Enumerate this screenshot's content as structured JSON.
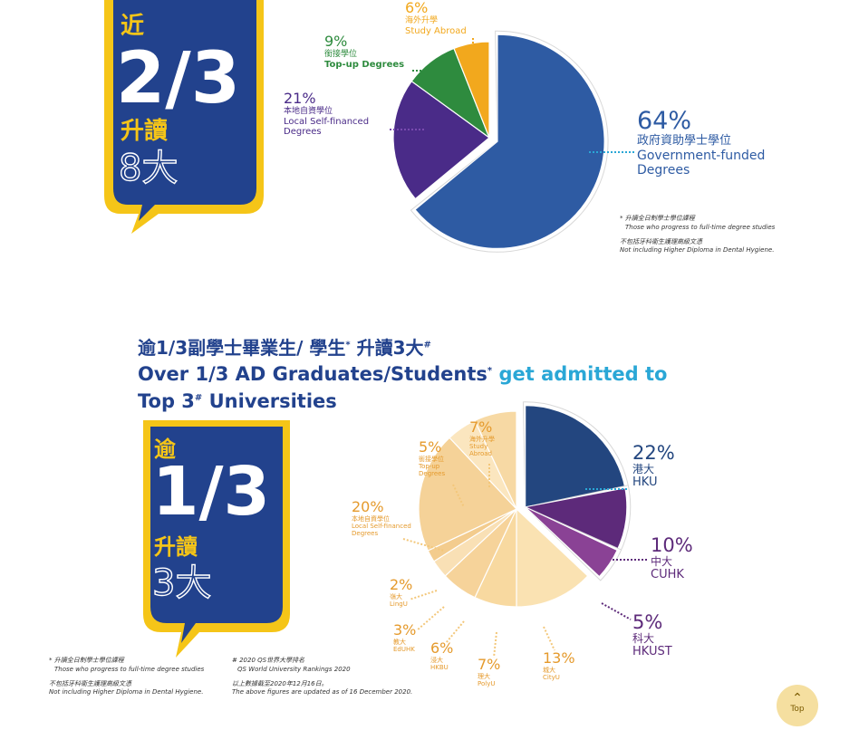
{
  "chart1": {
    "badge": {
      "line1": "近",
      "big": "2/3",
      "line3": "升讀",
      "line4": "8大"
    },
    "notes": [
      "* 升讀全日制學士學位課程",
      "Those who progress to full-time degree studies",
      "不包括牙科衞生護理高級文憑",
      "Not including Higher Diploma in Dental Hygiene."
    ]
  },
  "chart2": {
    "heading": {
      "zh_a": "逾1/3副學士畢業生/ 學生",
      "zh_star": "*",
      "zh_b": " 升讀3大",
      "zh_hash": "#",
      "en1_a": "Over 1/3 AD Graduates/Students",
      "en1_star": "*",
      "en1_b": " get admitted to",
      "en2_a": "Top 3",
      "en2_hash": "#",
      "en2_b": " Universities"
    },
    "badge": {
      "line1": "逾",
      "big": "1/3",
      "line3": "升讀",
      "line4": "3大"
    },
    "notes_left": [
      "* 升讀全日制學士學位課程",
      "Those who progress to full-time degree studies",
      "不包括牙科衞生護理高級文憑",
      "Not including Higher Diploma in Dental Hygiene."
    ],
    "notes_right": [
      "# 2020 QS世界大學排名",
      "QS World University Rankings 2020",
      "以上數據截至2020年12月16日。",
      "The above figures are updated as of 16 December 2020."
    ]
  },
  "chart_data": [
    {
      "type": "pie",
      "slices": [
        {
          "pct": "64%",
          "value": 64,
          "zh": "政府資助學士學位",
          "en": [
            "Government-funded",
            "Degrees"
          ],
          "color": "#2e5ba3",
          "exploded": true
        },
        {
          "pct": "21%",
          "value": 21,
          "zh": "本地自資學位",
          "en": [
            "Local Self-financed",
            "Degrees"
          ],
          "color": "#4a2b88"
        },
        {
          "pct": "9%",
          "value": 9,
          "zh": "銜接學位",
          "en": [
            "Top-up Degrees"
          ],
          "color": "#2e8b3e"
        },
        {
          "pct": "6%",
          "value": 6,
          "zh": "海外升學",
          "en": [
            "Study Abroad"
          ],
          "color": "#f2a81d"
        }
      ]
    },
    {
      "type": "pie",
      "slices": [
        {
          "pct": "22%",
          "value": 22,
          "zh": "港大",
          "en": [
            "HKU"
          ],
          "color": "#23467f",
          "exploded": true,
          "label_color": "#23467f"
        },
        {
          "pct": "10%",
          "value": 10,
          "zh": "中大",
          "en": [
            "CUHK"
          ],
          "color": "#5d2a7a",
          "exploded": true,
          "label_color": "#5d2a7a"
        },
        {
          "pct": "5%",
          "value": 5,
          "zh": "科大",
          "en": [
            "HKUST"
          ],
          "color": "#8a4295",
          "exploded": true,
          "label_color": "#5d2a7a"
        },
        {
          "pct": "13%",
          "value": 13,
          "zh": "城大",
          "en": [
            "CityU"
          ],
          "color": "#fae2b2",
          "label_color": "#e59a2c"
        },
        {
          "pct": "7%",
          "value": 7,
          "zh": "理大",
          "en": [
            "PolyU"
          ],
          "color": "#f8d9a0",
          "label_color": "#e59a2c"
        },
        {
          "pct": "6%",
          "value": 6,
          "zh": "浸大",
          "en": [
            "HKBU"
          ],
          "color": "#f6d39a",
          "label_color": "#e59a2c"
        },
        {
          "pct": "3%",
          "value": 3,
          "zh": "教大",
          "en": [
            "EdUHK"
          ],
          "color": "#f9e0b5",
          "label_color": "#e59a2c"
        },
        {
          "pct": "2%",
          "value": 2,
          "zh": "嶺大",
          "en": [
            "LingU"
          ],
          "color": "#f3cc8e",
          "label_color": "#e59a2c"
        },
        {
          "pct": "20%",
          "value": 20,
          "zh": "本地自資學位",
          "en": [
            "Local Self-financed",
            "Degrees"
          ],
          "color": "#f5d298",
          "label_color": "#e59a2c"
        },
        {
          "pct": "5%",
          "value": 5,
          "zh": "銜接學位",
          "en": [
            "Top-up",
            "Degrees"
          ],
          "color": "#fbe6bf",
          "label_color": "#e59a2c"
        },
        {
          "pct": "7%",
          "value": 7,
          "zh": "海外升學",
          "en": [
            "Study",
            "Abroad"
          ],
          "color": "#f7d9a4",
          "label_color": "#e59a2c"
        }
      ]
    }
  ],
  "top_button": {
    "label": "Top",
    "arrow": "chevron-up-icon"
  }
}
